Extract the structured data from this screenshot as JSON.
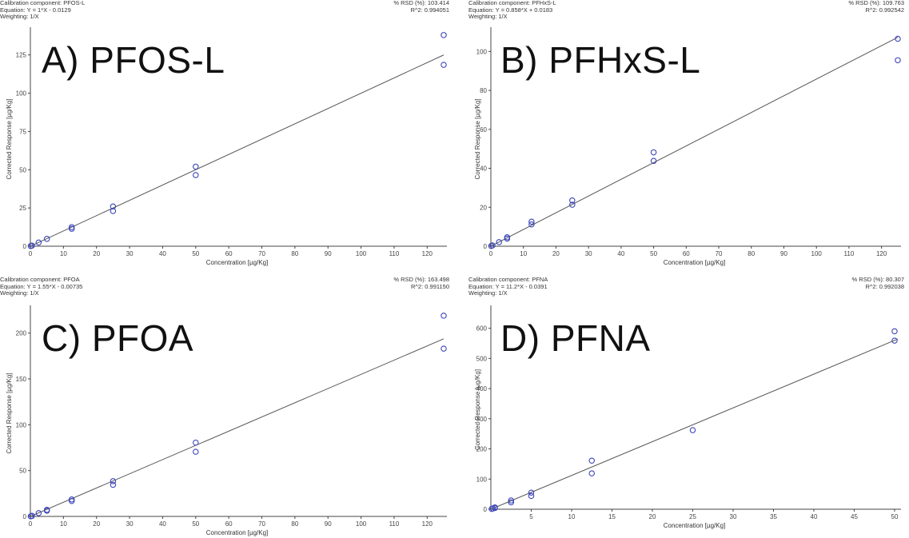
{
  "chart_data": [
    {
      "type": "scatter",
      "panel_label": "A) PFOS-L",
      "component": "Calibration component: PFOS-L",
      "equation": "Equation: Y = 1*X - 0.0129",
      "weighting": "Weighting: 1/X",
      "rsd": "% RSD (%): 103.414",
      "r2": "R^2: 0.994051",
      "xlabel": "Concentration [µg/Kg]",
      "ylabel": "Corrected Response [µg/Kg]",
      "xlim": [
        0,
        125
      ],
      "ylim": [
        0,
        140
      ],
      "xticks": [
        0,
        10,
        20,
        30,
        40,
        50,
        60,
        70,
        80,
        90,
        100,
        110,
        120
      ],
      "yticks": [
        0,
        25,
        50,
        75,
        100,
        125
      ],
      "points": [
        [
          0.1,
          0.1
        ],
        [
          0.5,
          0.4
        ],
        [
          2.5,
          2.4
        ],
        [
          5,
          4.8
        ],
        [
          12.5,
          12.5
        ],
        [
          12.5,
          11.4
        ],
        [
          25,
          26
        ],
        [
          25,
          23
        ],
        [
          50,
          52
        ],
        [
          50,
          46.5
        ],
        [
          125,
          138
        ],
        [
          125,
          118.5
        ]
      ],
      "fit": {
        "slope": 1.0,
        "intercept": -0.0129
      },
      "point_color": "#3b46b8",
      "line_color": "#555555"
    },
    {
      "type": "scatter",
      "panel_label": "B) PFHxS-L",
      "component": "Calibration component: PFHxS-L",
      "equation": "Equation: Y = 0.858*X + 0.0183",
      "weighting": "Weighting: 1/X",
      "rsd": "% RSD (%): 109.763",
      "r2": "R^2: 0.992542",
      "xlabel": "Concentration [µg/Kg]",
      "ylabel": "Corrected Response [µg/Kg]",
      "xlim": [
        0,
        125
      ],
      "ylim": [
        0,
        110
      ],
      "xticks": [
        0,
        10,
        20,
        30,
        40,
        50,
        60,
        70,
        80,
        90,
        100,
        110,
        120
      ],
      "yticks": [
        0,
        20,
        40,
        60,
        80,
        100
      ],
      "points": [
        [
          0.1,
          0.1
        ],
        [
          0.5,
          0.4
        ],
        [
          2.5,
          2.1
        ],
        [
          5,
          4.6
        ],
        [
          5,
          3.9
        ],
        [
          12.5,
          12.6
        ],
        [
          12.5,
          11.2
        ],
        [
          25,
          23.5
        ],
        [
          25,
          21.3
        ],
        [
          50,
          48.2
        ],
        [
          50,
          43.8
        ],
        [
          125,
          106.5
        ],
        [
          125,
          95.5
        ]
      ],
      "fit": {
        "slope": 0.858,
        "intercept": 0.0183
      },
      "point_color": "#3b46b8",
      "line_color": "#555555"
    },
    {
      "type": "scatter",
      "panel_label": "C) PFOA",
      "component": "Calibration component: PFOA",
      "equation": "Equation: Y = 1.55*X - 0.00735",
      "weighting": "Weighting: 1/X",
      "rsd": "% RSD (%): 163.498",
      "r2": "R^2: 0.991150",
      "xlabel": "Concentration [µg/Kg]",
      "ylabel": "Corrected Response [µg/Kg]",
      "xlim": [
        0,
        125
      ],
      "ylim": [
        0,
        225
      ],
      "xticks": [
        0,
        10,
        20,
        30,
        40,
        50,
        60,
        70,
        80,
        90,
        100,
        110,
        120
      ],
      "yticks": [
        0,
        50,
        100,
        150,
        200
      ],
      "points": [
        [
          0.1,
          0.1
        ],
        [
          0.5,
          0.6
        ],
        [
          2.5,
          3.6
        ],
        [
          5,
          7.2
        ],
        [
          5,
          6.2
        ],
        [
          12.5,
          18.5
        ],
        [
          12.5,
          16.8
        ],
        [
          25,
          38.5
        ],
        [
          25,
          34.5
        ],
        [
          50,
          80.5
        ],
        [
          50,
          70.5
        ],
        [
          125,
          219
        ],
        [
          125,
          183
        ]
      ],
      "fit": {
        "slope": 1.55,
        "intercept": -0.00735
      },
      "point_color": "#3b46b8",
      "line_color": "#555555"
    },
    {
      "type": "scatter",
      "panel_label": "D) PFNA",
      "component": "Calibration component: PFNA",
      "equation": "Equation: Y = 11.2*X - 0.0391",
      "weighting": "Weighting: 1/X",
      "rsd": "% RSD (%): 80.307",
      "r2": "R^2: 0.992038",
      "xlabel": "Concentration [µg/Kg]",
      "ylabel": "Corrected Response [µg/Kg]",
      "xlim": [
        0,
        50.4
      ],
      "ylim": [
        0,
        660
      ],
      "xticks": [
        5,
        10,
        15,
        20,
        25,
        30,
        35,
        40,
        45,
        50
      ],
      "yticks": [
        0,
        100,
        200,
        300,
        400,
        500,
        600
      ],
      "points": [
        [
          0.1,
          1
        ],
        [
          0.25,
          2.5
        ],
        [
          0.5,
          4
        ],
        [
          0.5,
          6
        ],
        [
          2.5,
          29
        ],
        [
          2.5,
          23
        ],
        [
          5,
          55
        ],
        [
          5,
          44
        ],
        [
          12.5,
          161
        ],
        [
          12.5,
          119
        ],
        [
          25,
          262
        ],
        [
          50,
          590
        ],
        [
          50,
          559
        ]
      ],
      "fit": {
        "slope": 11.2,
        "intercept": -0.0391
      },
      "point_color": "#3b46b8",
      "line_color": "#555555"
    }
  ]
}
